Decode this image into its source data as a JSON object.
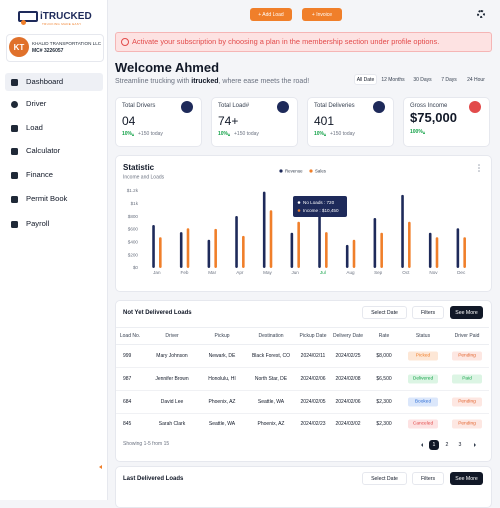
{
  "sidebar": {
    "logo": "iTRUCKED",
    "tagline": "TRUCKING MADE EASY",
    "profile": {
      "initials": "KT",
      "name": "KHALID TRANSPORTATION LLC",
      "mc": "MC# 3226057"
    },
    "nav": [
      "Dashboard",
      "Driver",
      "Load",
      "Calculator",
      "Finance",
      "Permit Book",
      "Payroll"
    ]
  },
  "topbar": {
    "buttons": [
      "+ Add Load",
      "+ Invoice"
    ]
  },
  "banner": "Activate your subscription by choosing a plan in the membership section under profile options.",
  "welcome": {
    "title": "Welcome Ahmed",
    "subtitle": [
      "Streamline trucking with ",
      "itrucked",
      ", where ease meets the road!"
    ],
    "filters": [
      "All Date",
      "12 Months",
      "30 Days",
      "7 Days",
      "24 Hour"
    ]
  },
  "stats": [
    {
      "label": "Total Drivers",
      "value": "04",
      "change": "10%",
      "note": "+150 today"
    },
    {
      "label": "Total Load#",
      "value": "74+",
      "change": "10%",
      "note": "+150 today"
    },
    {
      "label": "Total Deliveries",
      "value": "401",
      "change": "10%",
      "note": "+150 today"
    },
    {
      "label": "Gross Income",
      "value": "$75,000",
      "change": "100%"
    }
  ],
  "chart_data": {
    "type": "bar",
    "title": "Statistic",
    "subtitle": "Income and Loads",
    "categories": [
      "Jan",
      "Feb",
      "Mar",
      "Apr",
      "May",
      "Jun",
      "Jul",
      "Aug",
      "Sep",
      "Oct",
      "Nov",
      "Dec"
    ],
    "series": [
      {
        "name": "Revenue",
        "color": "#1e2a5a",
        "values": [
          670,
          560,
          440,
          810,
          1190,
          550,
          1110,
          360,
          780,
          1140,
          550,
          620
        ]
      },
      {
        "name": "Sales",
        "color": "#f07f2a",
        "values": [
          480,
          620,
          610,
          500,
          900,
          720,
          560,
          440,
          550,
          720,
          480,
          480
        ]
      }
    ],
    "ylim": [
      0,
      1200
    ],
    "yticks": [
      {
        "value": 0,
        "label": "$0"
      },
      {
        "value": 200,
        "label": "$200"
      },
      {
        "value": 400,
        "label": "$400"
      },
      {
        "value": 600,
        "label": "$600"
      },
      {
        "value": 800,
        "label": "$800"
      },
      {
        "value": 1000,
        "label": "$1k"
      },
      {
        "value": 1200,
        "label": "$1.2k"
      }
    ],
    "annotations": [
      "No Loads : 720",
      "Income : $10,450"
    ]
  },
  "table": {
    "title": "Not Yet Delivered Loads",
    "actions": [
      "Select Date",
      "Filters",
      "See More"
    ],
    "columns": [
      "Load No.",
      "Driver",
      "Pickup",
      "Destination",
      "Pickup Date",
      "Delivery Date",
      "Rate",
      "Status",
      "Driver Paid"
    ],
    "rows": [
      [
        "999",
        "Mary Johnson",
        "Newark, DE",
        "Black Forest, CO",
        "2024/02/11",
        "2024/02/25",
        "$8,000",
        "Picked",
        "Pending"
      ],
      [
        "987",
        "Jennifer Brown",
        "Honolulu, HI",
        "North Star, DE",
        "2024/02/06",
        "2024/02/08",
        "$6,500",
        "Delivered",
        "Paid"
      ],
      [
        "684",
        "David Lee",
        "Phoenix, AZ",
        "Seattle, WA",
        "2024/02/05",
        "2024/02/06",
        "$2,300",
        "Booked",
        "Pending"
      ],
      [
        "845",
        "Sarah Clark",
        "Seattle, WA",
        "Phoenix, AZ",
        "2024/02/23",
        "2024/03/02",
        "$2,300",
        "Canceled",
        "Pending"
      ]
    ],
    "footer": "Showing 1-5 from 15",
    "pages": [
      "1",
      "2",
      "3"
    ]
  },
  "table2": {
    "title": "Last Delivered Loads",
    "actions": [
      "Select Date",
      "Filters",
      "See More"
    ]
  }
}
